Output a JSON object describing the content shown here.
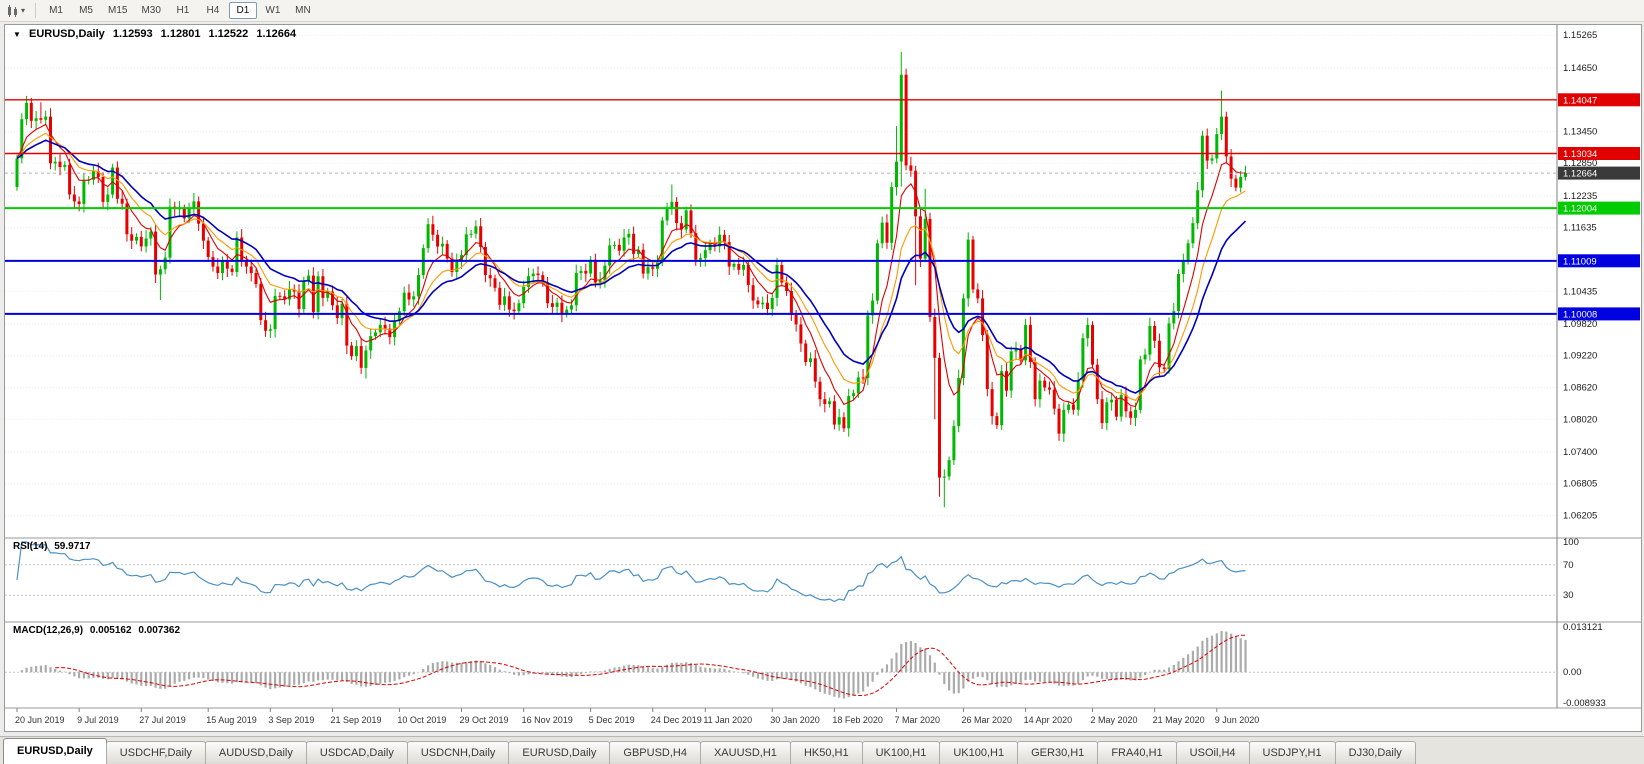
{
  "toolbar": {
    "caret_glyph": "▾",
    "icons": [
      {
        "name": "candlestick-chart-icon"
      },
      {
        "name": "dropdown-caret-icon",
        "glyph": "▾"
      }
    ],
    "timeframes": [
      {
        "label": "M1",
        "active": false
      },
      {
        "label": "M5",
        "active": false
      },
      {
        "label": "M15",
        "active": false
      },
      {
        "label": "M30",
        "active": false
      },
      {
        "label": "H1",
        "active": false
      },
      {
        "label": "H4",
        "active": false
      },
      {
        "label": "D1",
        "active": true
      },
      {
        "label": "W1",
        "active": false
      },
      {
        "label": "MN",
        "active": false
      }
    ]
  },
  "chart_data": {
    "type": "candlestick",
    "symbol_title": "EURUSD,Daily",
    "collapse_glyph": "▼",
    "ohlc": {
      "open": "1.12593",
      "high": "1.12801",
      "low": "1.12522",
      "close": "1.12664"
    },
    "price_axis": {
      "top": 1.1542,
      "bottom": 1.058,
      "ticks": [
        "1.15265",
        "1.14650",
        "1.13450",
        "1.12850",
        "1.12235",
        "1.11635",
        "1.10435",
        "1.09820",
        "1.09220",
        "1.08620",
        "1.08020",
        "1.07400",
        "1.06805",
        "1.06205"
      ]
    },
    "hlines": [
      {
        "price": 1.14047,
        "label": "1.14047",
        "color": "#e00000",
        "width": 1.4
      },
      {
        "price": 1.13034,
        "label": "1.13034",
        "color": "#e00000",
        "width": 1.4
      },
      {
        "price": 1.12004,
        "label": "1.12004",
        "color": "#00cc00",
        "width": 2
      },
      {
        "price": 1.11009,
        "label": "1.11009",
        "color": "#0000e0",
        "width": 2
      },
      {
        "price": 1.10008,
        "label": "1.10008",
        "color": "#0000e0",
        "width": 2
      }
    ],
    "current_price": {
      "value": 1.12664,
      "label": "1.12664",
      "box_color": "#3a3a3a"
    },
    "colors": {
      "up": "#00b800",
      "down": "#e80000"
    },
    "first_open": 1.124,
    "closes": [
      1.1294,
      1.1368,
      1.1399,
      1.1365,
      1.137,
      1.1367,
      1.1373,
      1.1285,
      1.1288,
      1.1278,
      1.1282,
      1.1226,
      1.1213,
      1.1208,
      1.1252,
      1.1254,
      1.127,
      1.1259,
      1.1212,
      1.1226,
      1.1277,
      1.1218,
      1.1209,
      1.1151,
      1.1139,
      1.1146,
      1.1128,
      1.1143,
      1.1156,
      1.1075,
      1.1085,
      1.1107,
      1.1203,
      1.1199,
      1.12,
      1.1181,
      1.1199,
      1.1213,
      1.1171,
      1.1139,
      1.1108,
      1.109,
      1.1078,
      1.11,
      1.1086,
      1.108,
      1.1145,
      1.1101,
      1.109,
      1.1078,
      1.1057,
      1.0989,
      1.0969,
      1.0972,
      1.1035,
      1.1034,
      1.1028,
      1.1047,
      1.1043,
      1.101,
      1.1064,
      1.1073,
      1.1004,
      1.1072,
      1.1031,
      1.1043,
      1.1017,
      1.0993,
      1.102,
      1.0941,
      1.0921,
      1.094,
      1.0899,
      1.0932,
      1.0959,
      1.0966,
      1.098,
      1.0973,
      1.0957,
      1.0988,
      1.1006,
      1.1041,
      1.1028,
      1.1034,
      1.1074,
      1.1125,
      1.117,
      1.115,
      1.1128,
      1.1133,
      1.1105,
      1.108,
      1.1099,
      1.1112,
      1.1151,
      1.1152,
      1.1166,
      1.1127,
      1.1074,
      1.1068,
      1.105,
      1.1018,
      1.1034,
      1.1009,
      1.1006,
      1.1021,
      1.1052,
      1.1072,
      1.1077,
      1.1074,
      1.1059,
      1.1021,
      1.1014,
      1.1022,
      1.1001,
      1.1009,
      1.1017,
      1.1078,
      1.1082,
      1.1077,
      1.1103,
      1.106,
      1.1064,
      1.1092,
      1.113,
      1.1131,
      1.112,
      1.1145,
      1.1152,
      1.1114,
      1.1122,
      1.1077,
      1.1089,
      1.1086,
      1.1098,
      1.1177,
      1.1199,
      1.1212,
      1.1172,
      1.116,
      1.1196,
      1.1153,
      1.1103,
      1.1106,
      1.1121,
      1.1134,
      1.1128,
      1.115,
      1.1136,
      1.109,
      1.1095,
      1.1084,
      1.1093,
      1.1055,
      1.1026,
      1.1019,
      1.1022,
      1.101,
      1.1031,
      1.1093,
      1.106,
      1.1044,
      1.0999,
      1.0981,
      1.0945,
      1.091,
      1.0917,
      1.0873,
      1.084,
      1.0831,
      1.0836,
      1.0792,
      1.0806,
      1.0785,
      1.0846,
      1.0851,
      1.0881,
      1.088,
      1.0998,
      1.1026,
      1.1134,
      1.1173,
      1.1135,
      1.124,
      1.1288,
      1.1452,
      1.1281,
      1.1271,
      1.1185,
      1.1105,
      1.118,
      1.0995,
      1.0918,
      1.0692,
      1.0694,
      1.0725,
      1.0789,
      1.088,
      1.103,
      1.1141,
      1.1047,
      1.103,
      1.0961,
      1.0859,
      1.0808,
      1.0791,
      1.0893,
      1.0856,
      1.093,
      1.0935,
      1.0913,
      1.098,
      1.091,
      1.084,
      1.0875,
      1.0862,
      1.0858,
      1.0822,
      1.0775,
      1.082,
      1.083,
      1.082,
      1.0875,
      1.0955,
      1.098,
      1.0905,
      1.084,
      1.0795,
      1.0834,
      1.0839,
      1.0807,
      1.0848,
      1.0817,
      1.0805,
      1.082,
      1.0915,
      1.0924,
      1.0978,
      1.095,
      1.09,
      1.0897,
      1.0983,
      1.1006,
      1.1076,
      1.1101,
      1.1134,
      1.1172,
      1.1234,
      1.1337,
      1.129,
      1.1294,
      1.134,
      1.1373,
      1.1298,
      1.1256,
      1.1239,
      1.12593,
      1.12664
    ],
    "overrides": {
      "2": {
        "h": 1.1412
      },
      "5": {
        "h": 1.14
      },
      "30": {
        "l": 1.1027
      },
      "73": {
        "l": 1.0879
      },
      "137": {
        "h": 1.1245
      },
      "173": {
        "l": 1.0778
      },
      "184": {
        "h": 1.1355
      },
      "185": {
        "h": 1.1495,
        "l": 1.1241
      },
      "188": {
        "l": 1.1055
      },
      "190": {
        "h": 1.1237
      },
      "192": {
        "l": 1.0802
      },
      "193": {
        "l": 1.0656
      },
      "194": {
        "l": 1.0636
      },
      "252": {
        "h": 1.1422
      },
      "257": {
        "h": 1.12801,
        "l": 1.12522
      }
    },
    "ma": [
      {
        "type": "ema",
        "period": 7,
        "color": "#e00000",
        "width": 1.1
      },
      {
        "type": "ema",
        "period": 13,
        "color": "#ff9900",
        "width": 1.1
      },
      {
        "type": "ema",
        "period": 21,
        "color": "#0000bb",
        "width": 1.6
      }
    ],
    "x_labels": [
      [
        "20 Jun 2019",
        0
      ],
      [
        "9 Jul 2019",
        13
      ],
      [
        "27 Jul 2019",
        26
      ],
      [
        "15 Aug 2019",
        40
      ],
      [
        "3 Sep 2019",
        53
      ],
      [
        "21 Sep 2019",
        66
      ],
      [
        "10 Oct 2019",
        80
      ],
      [
        "29 Oct 2019",
        93
      ],
      [
        "16 Nov 2019",
        106
      ],
      [
        "5 Dec 2019",
        120
      ],
      [
        "24 Dec 2019",
        133
      ],
      [
        "11 Jan 2020",
        144
      ],
      [
        "30 Jan 2020",
        158
      ],
      [
        "18 Feb 2020",
        171
      ],
      [
        "7 Mar 2020",
        184
      ],
      [
        "26 Mar 2020",
        198
      ],
      [
        "14 Apr 2020",
        211
      ],
      [
        "2 May 2020",
        225
      ],
      [
        "21 May 2020",
        238
      ],
      [
        "9 Jun 2020",
        251
      ]
    ],
    "rsi": {
      "label": "RSI(14)",
      "value": "59.9717",
      "period": 14,
      "color": "#4a90c4",
      "levels": [
        70,
        30
      ],
      "axis": [
        {
          "t": "100",
          "v": 100
        },
        {
          "t": "70",
          "v": 70
        },
        {
          "t": "30",
          "v": 30
        }
      ]
    },
    "macd": {
      "label": "MACD(12,26,9)",
      "value_main": "0.005162",
      "value_signal": "0.007362",
      "fast": 12,
      "slow": 26,
      "signal": 9,
      "axis_max": 0.013121,
      "axis_min": -0.008933,
      "axis_labels": [
        {
          "t": "0.013121",
          "v": 0.013121
        },
        {
          "t": "0.00",
          "v": 0
        },
        {
          "t": "-0.008933",
          "v": -0.008933
        }
      ],
      "hist_color": "#ababab",
      "signal_color": "#e00000"
    }
  },
  "tabs": [
    {
      "label": "EURUSD,Daily",
      "active": true
    },
    {
      "label": "USDCHF,Daily",
      "active": false
    },
    {
      "label": "AUDUSD,Daily",
      "active": false
    },
    {
      "label": "USDCAD,Daily",
      "active": false
    },
    {
      "label": "USDCNH,Daily",
      "active": false
    },
    {
      "label": "EURUSD,Daily",
      "active": false
    },
    {
      "label": "GBPUSD,H4",
      "active": false
    },
    {
      "label": "XAUUSD,H1",
      "active": false
    },
    {
      "label": "HK50,H1",
      "active": false
    },
    {
      "label": "UK100,H1",
      "active": false
    },
    {
      "label": "UK100,H1",
      "active": false
    },
    {
      "label": "GER30,H1",
      "active": false
    },
    {
      "label": "FRA40,H1",
      "active": false
    },
    {
      "label": "USOil,H4",
      "active": false
    },
    {
      "label": "USDJPY,H1",
      "active": false
    },
    {
      "label": "DJ30,Daily",
      "active": false
    }
  ]
}
